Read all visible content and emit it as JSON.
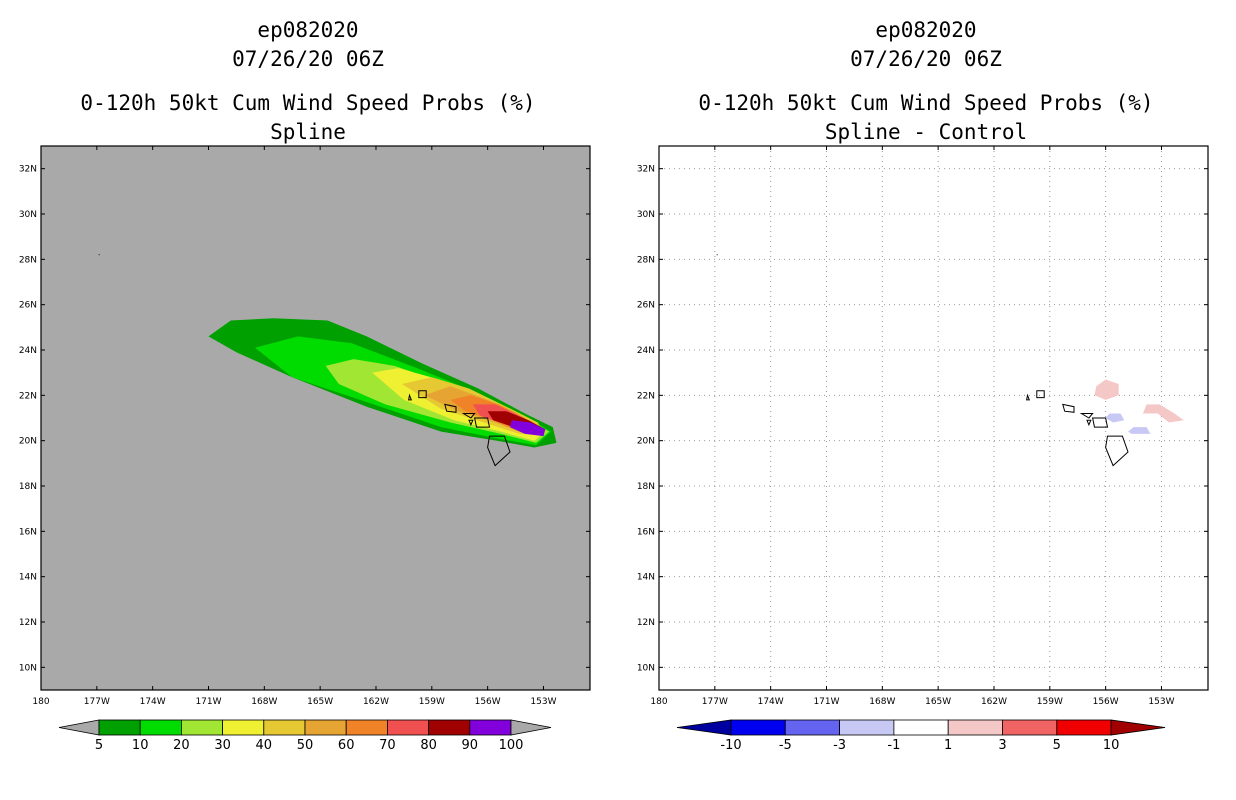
{
  "panels": [
    {
      "storm": "ep082020",
      "datetime": "07/26/20 06Z",
      "product": "0-120h 50kt Cum Wind Speed Probs (%)",
      "subtitle": "Spline"
    },
    {
      "storm": "ep082020",
      "datetime": "07/26/20 06Z",
      "product": "0-120h 50kt Cum Wind Speed Probs (%)",
      "subtitle": "Spline - Control"
    }
  ],
  "chart_data": [
    {
      "type": "heatmap",
      "title": "0-120h 50kt Cum Wind Speed Probs (%) - Spline",
      "xlim": [
        -180,
        -150.5
      ],
      "ylim": [
        9,
        33
      ],
      "x_ticks": [
        -180,
        -177,
        -174,
        -171,
        -168,
        -165,
        -162,
        -159,
        -156,
        -153
      ],
      "x_tick_labels": [
        "180",
        "177W",
        "174W",
        "171W",
        "168W",
        "165W",
        "162W",
        "159W",
        "156W",
        "153W"
      ],
      "y_ticks": [
        10,
        12,
        14,
        16,
        18,
        20,
        22,
        24,
        26,
        28,
        30,
        32
      ],
      "y_tick_labels": [
        "10N",
        "12N",
        "14N",
        "16N",
        "18N",
        "20N",
        "22N",
        "24N",
        "26N",
        "28N",
        "30N",
        "32N"
      ],
      "colorbar": {
        "levels": [
          "5",
          "10",
          "20",
          "30",
          "40",
          "50",
          "60",
          "70",
          "80",
          "90",
          "100"
        ],
        "colors": [
          "#00a000",
          "#00dc00",
          "#a0e632",
          "#f0f032",
          "#e6c832",
          "#e6a532",
          "#f08228",
          "#f05050",
          "#a00000",
          "#8200dc"
        ]
      },
      "background_color": "#a9a9a9",
      "contours": [
        {
          "level": 5,
          "color": "#00a000",
          "points": [
            [
              -171.0,
              24.6
            ],
            [
              -169.8,
              25.3
            ],
            [
              -167.5,
              25.4
            ],
            [
              -164.6,
              25.3
            ],
            [
              -162.5,
              24.6
            ],
            [
              -159.5,
              23.4
            ],
            [
              -156.5,
              22.3
            ],
            [
              -154.0,
              21.2
            ],
            [
              -152.5,
              20.6
            ],
            [
              -152.3,
              19.9
            ],
            [
              -153.5,
              19.7
            ],
            [
              -155.5,
              20.0
            ],
            [
              -158.5,
              20.4
            ],
            [
              -162.5,
              21.5
            ],
            [
              -166.5,
              22.8
            ],
            [
              -169.5,
              23.9
            ]
          ]
        },
        {
          "level": 10,
          "color": "#00dc00",
          "points": [
            [
              -168.5,
              24.1
            ],
            [
              -166.2,
              24.6
            ],
            [
              -163.3,
              24.3
            ],
            [
              -159.8,
              23.2
            ],
            [
              -156.5,
              22.1
            ],
            [
              -154.0,
              21.1
            ],
            [
              -152.6,
              20.4
            ],
            [
              -153.4,
              19.8
            ],
            [
              -155.5,
              20.1
            ],
            [
              -158.5,
              20.6
            ],
            [
              -162.5,
              21.7
            ],
            [
              -166.5,
              22.8
            ]
          ]
        },
        {
          "level": 20,
          "color": "#a0e632",
          "points": [
            [
              -164.7,
              23.3
            ],
            [
              -163.2,
              23.6
            ],
            [
              -161.0,
              23.3
            ],
            [
              -158.5,
              22.6
            ],
            [
              -155.8,
              21.7
            ],
            [
              -153.7,
              20.9
            ],
            [
              -152.7,
              20.4
            ],
            [
              -153.4,
              19.9
            ],
            [
              -155.3,
              20.3
            ],
            [
              -158.0,
              20.8
            ],
            [
              -161.5,
              21.6
            ],
            [
              -164.0,
              22.5
            ]
          ]
        },
        {
          "level": 30,
          "color": "#f0f032",
          "points": [
            [
              -162.2,
              23.0
            ],
            [
              -160.8,
              23.2
            ],
            [
              -158.6,
              22.7
            ],
            [
              -156.2,
              21.8
            ],
            [
              -154.0,
              21.0
            ],
            [
              -152.9,
              20.4
            ],
            [
              -153.5,
              20.0
            ],
            [
              -155.3,
              20.4
            ],
            [
              -157.8,
              20.9
            ],
            [
              -160.5,
              21.8
            ]
          ]
        },
        {
          "level": 40,
          "color": "#e6c832",
          "points": [
            [
              -160.6,
              22.5
            ],
            [
              -159.0,
              22.8
            ],
            [
              -157.0,
              22.3
            ],
            [
              -155.0,
              21.5
            ],
            [
              -153.3,
              20.8
            ],
            [
              -153.0,
              20.3
            ],
            [
              -154.3,
              20.3
            ],
            [
              -156.2,
              20.8
            ],
            [
              -158.5,
              21.4
            ]
          ]
        },
        {
          "level": 50,
          "color": "#e6a532",
          "points": [
            [
              -159.4,
              22.0
            ],
            [
              -158.0,
              22.4
            ],
            [
              -156.3,
              21.9
            ],
            [
              -154.6,
              21.3
            ],
            [
              -153.3,
              20.6
            ],
            [
              -154.0,
              20.3
            ],
            [
              -155.6,
              20.8
            ],
            [
              -157.6,
              21.3
            ]
          ]
        },
        {
          "level": 60,
          "color": "#f08228",
          "points": [
            [
              -158.0,
              21.8
            ],
            [
              -156.9,
              22.0
            ],
            [
              -155.4,
              21.6
            ],
            [
              -154.0,
              21.0
            ],
            [
              -153.3,
              20.5
            ],
            [
              -154.3,
              20.4
            ],
            [
              -155.7,
              20.9
            ],
            [
              -157.2,
              21.3
            ]
          ]
        },
        {
          "level": 70,
          "color": "#f05050",
          "points": [
            [
              -156.8,
              21.6
            ],
            [
              -155.6,
              21.6
            ],
            [
              -154.3,
              21.1
            ],
            [
              -153.2,
              20.6
            ],
            [
              -153.6,
              20.3
            ],
            [
              -155.0,
              20.7
            ],
            [
              -156.4,
              21.1
            ]
          ]
        },
        {
          "level": 80,
          "color": "#a00000",
          "points": [
            [
              -156.0,
              21.3
            ],
            [
              -155.0,
              21.3
            ],
            [
              -153.8,
              20.9
            ],
            [
              -152.9,
              20.5
            ],
            [
              -153.3,
              20.3
            ],
            [
              -154.6,
              20.6
            ],
            [
              -155.7,
              20.9
            ]
          ]
        },
        {
          "level": 90,
          "color": "#8200dc",
          "points": [
            [
              -154.7,
              20.9
            ],
            [
              -153.7,
              20.8
            ],
            [
              -152.9,
              20.5
            ],
            [
              -153.0,
              20.2
            ],
            [
              -154.0,
              20.3
            ],
            [
              -154.8,
              20.6
            ]
          ]
        }
      ]
    },
    {
      "type": "heatmap",
      "title": "0-120h 50kt Cum Wind Speed Probs (%) - Spline - Control",
      "xlim": [
        -180,
        -150.5
      ],
      "ylim": [
        9,
        33
      ],
      "x_ticks": [
        -180,
        -177,
        -174,
        -171,
        -168,
        -165,
        -162,
        -159,
        -156,
        -153
      ],
      "x_tick_labels": [
        "180",
        "177W",
        "174W",
        "171W",
        "168W",
        "165W",
        "162W",
        "159W",
        "156W",
        "153W"
      ],
      "y_ticks": [
        10,
        12,
        14,
        16,
        18,
        20,
        22,
        24,
        26,
        28,
        30,
        32
      ],
      "y_tick_labels": [
        "10N",
        "12N",
        "14N",
        "16N",
        "18N",
        "20N",
        "22N",
        "24N",
        "26N",
        "28N",
        "30N",
        "32N"
      ],
      "colorbar": {
        "levels": [
          "-10",
          "-5",
          "-3",
          "-1",
          "1",
          "3",
          "5",
          "10"
        ],
        "colors": [
          "#0000a0",
          "#0000f0",
          "#6464f0",
          "#c8c8f5",
          "#ffffff",
          "#f5c8c8",
          "#f06464",
          "#f00000",
          "#a00000"
        ]
      },
      "background_color": "#ffffff",
      "contours": [
        {
          "level": 1,
          "color": "#f5c8c8",
          "points": [
            [
              -156.5,
              22.4
            ],
            [
              -156.0,
              22.7
            ],
            [
              -155.3,
              22.5
            ],
            [
              -155.3,
              22.0
            ],
            [
              -156.0,
              21.8
            ],
            [
              -156.6,
              22.0
            ]
          ]
        },
        {
          "level": 1,
          "color": "#f5c8c8",
          "points": [
            [
              -153.8,
              21.6
            ],
            [
              -153.1,
              21.6
            ],
            [
              -152.3,
              21.2
            ],
            [
              -151.8,
              20.9
            ],
            [
              -152.6,
              20.8
            ],
            [
              -153.2,
              21.2
            ],
            [
              -154.0,
              21.2
            ]
          ]
        },
        {
          "level": -1,
          "color": "#c8c8f5",
          "points": [
            [
              -155.8,
              21.2
            ],
            [
              -155.2,
              21.2
            ],
            [
              -155.0,
              20.9
            ],
            [
              -155.6,
              20.8
            ],
            [
              -156.0,
              21.0
            ]
          ]
        },
        {
          "level": -1,
          "color": "#c8c8f5",
          "points": [
            [
              -154.5,
              20.6
            ],
            [
              -153.8,
              20.6
            ],
            [
              -153.6,
              20.3
            ],
            [
              -154.6,
              20.3
            ],
            [
              -154.8,
              20.4
            ]
          ]
        }
      ]
    }
  ],
  "icons": {
    "coastline": "hawaii-coastline-outline"
  }
}
